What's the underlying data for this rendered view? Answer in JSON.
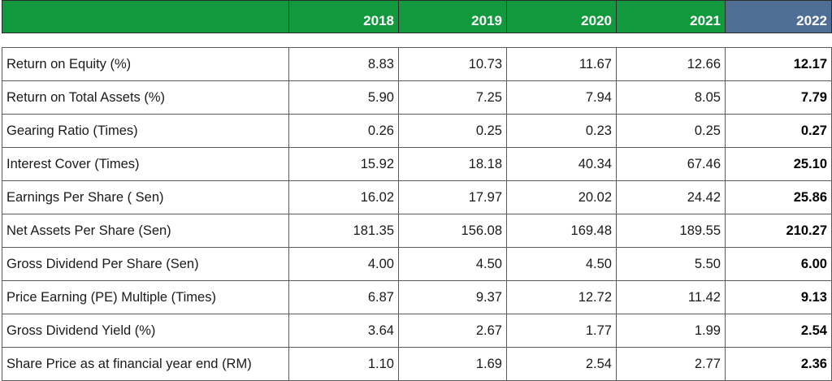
{
  "headers": [
    "2018",
    "2019",
    "2020",
    "2021",
    "2022"
  ],
  "rows": [
    {
      "label": "Return on Equity (%)",
      "values": [
        "8.83",
        "10.73",
        "11.67",
        "12.66",
        "12.17"
      ]
    },
    {
      "label": "Return on Total Assets (%)",
      "values": [
        "5.90",
        "7.25",
        "7.94",
        "8.05",
        "7.79"
      ]
    },
    {
      "label": "Gearing Ratio (Times)",
      "values": [
        "0.26",
        "0.25",
        "0.23",
        "0.25",
        "0.27"
      ]
    },
    {
      "label": "Interest Cover (Times)",
      "values": [
        "15.92",
        "18.18",
        "40.34",
        "67.46",
        "25.10"
      ]
    },
    {
      "label": "Earnings Per Share ( Sen)",
      "values": [
        "16.02",
        "17.97",
        "20.02",
        "24.42",
        "25.86"
      ]
    },
    {
      "label": "Net Assets Per Share (Sen)",
      "values": [
        "181.35",
        "156.08",
        "169.48",
        "189.55",
        "210.27"
      ]
    },
    {
      "label": "Gross Dividend Per Share (Sen)",
      "values": [
        "4.00",
        "4.50",
        "4.50",
        "5.50",
        "6.00"
      ]
    },
    {
      "label": "Price Earning (PE) Multiple (Times)",
      "values": [
        "6.87",
        "9.37",
        "12.72",
        "11.42",
        "9.13"
      ]
    },
    {
      "label": "Gross Dividend Yield (%)",
      "values": [
        "3.64",
        "2.67",
        "1.77",
        "1.99",
        "2.54"
      ]
    },
    {
      "label": "Share Price as at financial year end (RM)",
      "values": [
        "1.10",
        "1.69",
        "2.54",
        "2.77",
        "2.36"
      ]
    }
  ],
  "colors": {
    "header_green": "#12993e",
    "header_highlight": "#4e6e95"
  }
}
